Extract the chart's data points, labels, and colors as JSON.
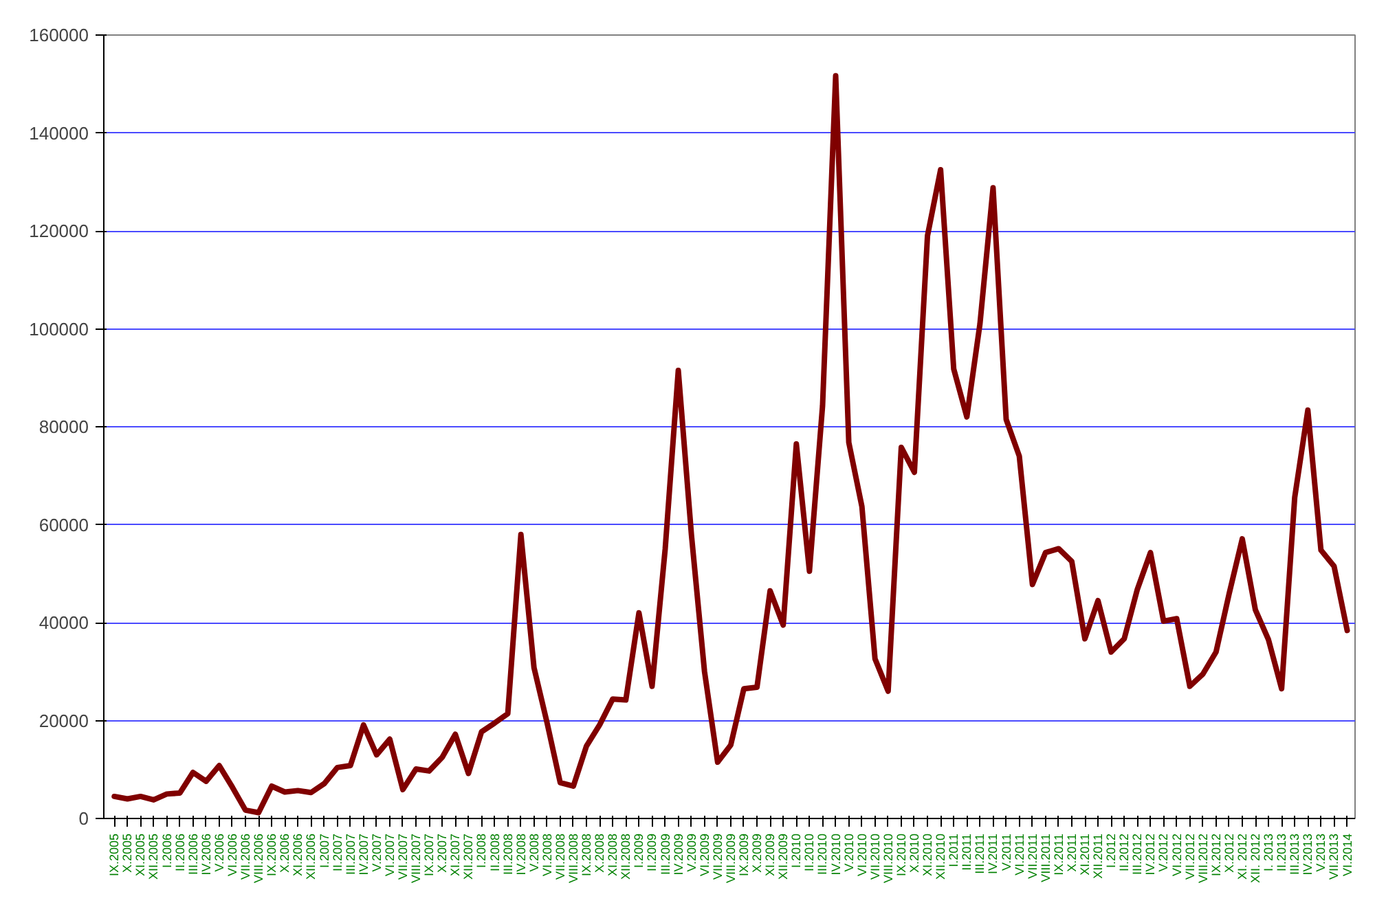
{
  "chart_data": {
    "type": "line",
    "categories": [
      "IX.2005",
      "X.2005",
      "XI.2005",
      "XII.2005",
      "I.2006",
      "II.2006",
      "III.2006",
      "IV.2006",
      "V.2006",
      "VI.2006",
      "VII.2006",
      "VIII.2006",
      "IX.2006",
      "X.2006",
      "XI.2006",
      "XII.2006",
      "I.2007",
      "II.2007",
      "III.2007",
      "IV.2007",
      "V.2007",
      "VI.2007",
      "VII.2007",
      "VIII.2007",
      "IX.2007",
      "X.2007",
      "XI.2007",
      "XII.2007",
      "I.2008",
      "II.2008",
      "III.2008",
      "IV.2008",
      "V.2008",
      "VI.2008",
      "VII.2008",
      "VIII.2008",
      "IX.2008",
      "X.2008",
      "XI.2008",
      "XII.2008",
      "I.2009",
      "II.2009",
      "III.2009",
      "IV.2009",
      "V.2009",
      "VI.2009",
      "VII.2009",
      "VIII.2009",
      "IX.2009",
      "X.2009",
      "XI.2009",
      "XII.2009",
      "I.2010",
      "II.2010",
      "III.2010",
      "IV.2010",
      "V.2010",
      "VI.2010",
      "VII.2010",
      "VIII.2010",
      "IX.2010",
      "X.2010",
      "XI.2010",
      "XII.2010",
      "I.2011",
      "II.2011",
      "III.2011",
      "IV.2011",
      "V.2011",
      "VI.2011",
      "VII.2011",
      "VIII.2011",
      "IX.2011",
      "X.2011",
      "XI.2011",
      "XII.2011",
      "I.2012",
      "II.2012",
      "III.2012",
      "IV.2012",
      "V.2012",
      "VI.2012",
      "VII.2012",
      "VIII.2012",
      "IX.2012",
      "X.2012",
      "XI. 2012",
      "XII. 2012",
      "I. 2013",
      "II.2013",
      "III.2013",
      "IV.2013",
      "V.2013",
      "VII.2013",
      "VI.2014"
    ],
    "series": [
      {
        "color": "#800000",
        "values": [
          4500,
          4000,
          4500,
          3800,
          5000,
          5200,
          9400,
          7600,
          10800,
          6400,
          1700,
          1200,
          6600,
          5400,
          5700,
          5300,
          7100,
          10400,
          10800,
          19100,
          13000,
          16200,
          5900,
          10100,
          9700,
          12500,
          17200,
          9200,
          17700,
          19500,
          21400,
          58000,
          30800,
          19500,
          7300,
          6600,
          14800,
          19100,
          24400,
          24200,
          42000,
          27000,
          55000,
          91500,
          58000,
          30000,
          11500,
          15000,
          26500,
          26800,
          46500,
          39500,
          76500,
          50500,
          84300,
          151700,
          76800,
          63700,
          32600,
          26000,
          75800,
          70700,
          119000,
          132500,
          91800,
          82000,
          101000,
          128800,
          81500,
          74000,
          47800,
          54300,
          55100,
          52500,
          36700,
          44500,
          34000,
          36700,
          46800,
          54300,
          40300,
          40800,
          27000,
          29500,
          34000,
          45900,
          57100,
          42600,
          36500,
          26500,
          65600,
          83400,
          54800,
          51500,
          38400
        ]
      }
    ],
    "ylim": [
      0,
      160000
    ],
    "yticks": [
      0,
      20000,
      40000,
      60000,
      80000,
      100000,
      120000,
      140000,
      160000
    ],
    "grid": "y"
  }
}
